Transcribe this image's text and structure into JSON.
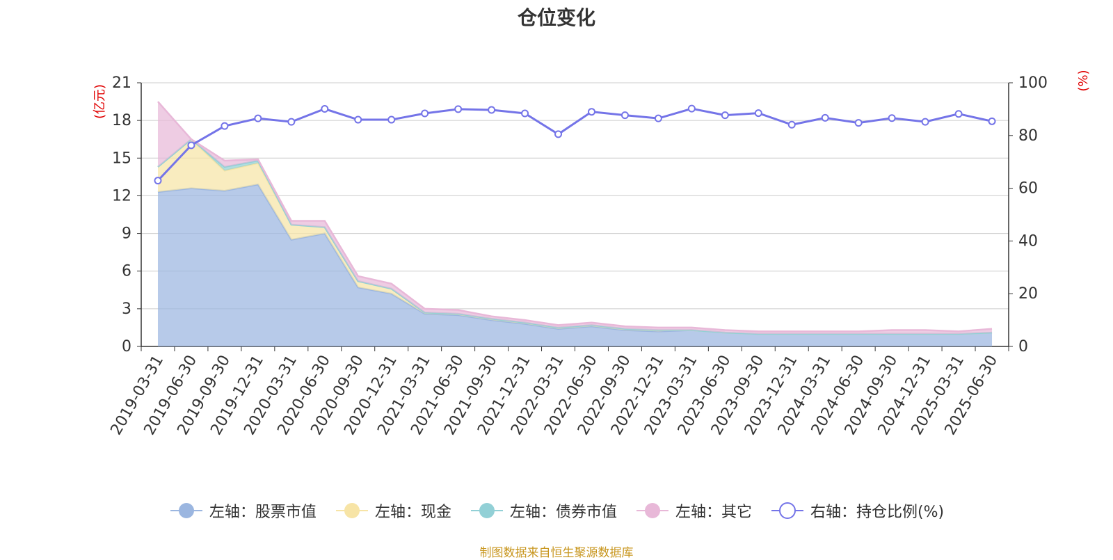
{
  "title": "仓位变化",
  "source_note": "制图数据来自恒生聚源数据库",
  "chart_data": {
    "type": "area",
    "title": "仓位变化",
    "y_left_label": "(亿元)",
    "y_right_label": "(%)",
    "y_left_lim": [
      0,
      21
    ],
    "y_left_ticks": [
      0,
      3,
      6,
      9,
      12,
      15,
      18,
      21
    ],
    "y_right_lim": [
      0,
      100
    ],
    "y_right_ticks": [
      0,
      20,
      40,
      60,
      80,
      100
    ],
    "grid": true,
    "legend_position": "bottom",
    "categories": [
      "2019-03-31",
      "2019-06-30",
      "2019-09-30",
      "2019-12-31",
      "2020-03-31",
      "2020-06-30",
      "2020-09-30",
      "2020-12-31",
      "2021-03-31",
      "2021-06-30",
      "2021-09-30",
      "2021-12-31",
      "2022-03-31",
      "2022-06-30",
      "2022-09-30",
      "2022-12-31",
      "2023-03-31",
      "2023-06-30",
      "2023-09-30",
      "2023-12-31",
      "2024-03-31",
      "2024-06-30",
      "2024-09-30",
      "2024-12-31",
      "2025-03-31",
      "2025-06-30"
    ],
    "series": [
      {
        "name": "左轴：股票市值",
        "axis": "left",
        "kind": "stacked-area",
        "color": "#9bb6e0",
        "values": [
          12.3,
          12.6,
          12.4,
          12.9,
          8.5,
          9.0,
          4.7,
          4.2,
          2.6,
          2.5,
          2.1,
          1.8,
          1.4,
          1.6,
          1.3,
          1.2,
          1.3,
          1.1,
          1.0,
          1.0,
          1.0,
          1.0,
          1.0,
          1.0,
          1.0,
          1.1
        ]
      },
      {
        "name": "左轴：现金",
        "axis": "left",
        "kind": "stacked-area",
        "color": "#f7e4a6",
        "values": [
          2.0,
          3.9,
          1.6,
          1.7,
          1.2,
          0.5,
          0.5,
          0.4,
          0.1,
          0.1,
          0.1,
          0.1,
          0.1,
          0.1,
          0.1,
          0.1,
          0.0,
          0.0,
          0.0,
          0.0,
          0.0,
          0.0,
          0.0,
          0.0,
          0.0,
          0.0
        ]
      },
      {
        "name": "左轴：债券市值",
        "axis": "left",
        "kind": "stacked-area",
        "color": "#92d0d6",
        "values": [
          0.0,
          0.0,
          0.3,
          0.2,
          0.0,
          0.0,
          0.0,
          0.0,
          0.0,
          0.0,
          0.0,
          0.0,
          0.0,
          0.0,
          0.0,
          0.0,
          0.0,
          0.0,
          0.0,
          0.0,
          0.0,
          0.0,
          0.0,
          0.0,
          0.0,
          0.0
        ]
      },
      {
        "name": "左轴：其它",
        "axis": "left",
        "kind": "stacked-area",
        "color": "#e8b8d8",
        "values": [
          5.2,
          0.0,
          0.5,
          0.1,
          0.3,
          0.5,
          0.4,
          0.4,
          0.3,
          0.3,
          0.2,
          0.2,
          0.2,
          0.2,
          0.2,
          0.2,
          0.2,
          0.2,
          0.2,
          0.2,
          0.2,
          0.2,
          0.3,
          0.3,
          0.2,
          0.3
        ]
      },
      {
        "name": "右轴：持仓比例(%)",
        "axis": "right",
        "kind": "line",
        "color": "#7474e8",
        "values": [
          62.9,
          76.3,
          83.6,
          86.5,
          85.2,
          90.1,
          86.0,
          86.0,
          88.4,
          90.0,
          89.7,
          88.4,
          80.5,
          89.0,
          87.7,
          86.5,
          90.2,
          87.7,
          88.5,
          84.1,
          86.7,
          84.8,
          86.6,
          85.2,
          88.2,
          85.4
        ]
      }
    ]
  }
}
